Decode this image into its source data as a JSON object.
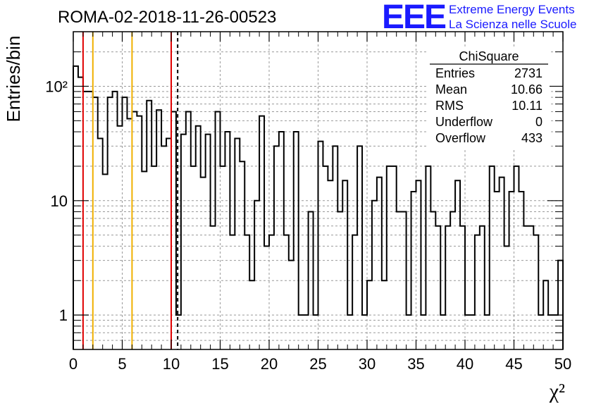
{
  "header": {
    "title": "ROMA-02-2018-11-26-00523",
    "logo": "EEE",
    "logo_line1": "Extreme Energy Events",
    "logo_line2": "La Scienza nelle Scuole"
  },
  "stats": {
    "name": "ChiSquare",
    "rows": [
      {
        "label": "Entries",
        "value": "2731"
      },
      {
        "label": "Mean",
        "value": "10.66"
      },
      {
        "label": "RMS",
        "value": "10.11"
      },
      {
        "label": "Underflow",
        "value": "0"
      },
      {
        "label": "Overflow",
        "value": "433"
      }
    ]
  },
  "chart_data": {
    "type": "bar",
    "histogram": "step",
    "xlabel": "χ²",
    "ylabel": "Entries/bin",
    "xlim": [
      0,
      50
    ],
    "ylim": [
      0.5,
      300
    ],
    "y_scale": "log",
    "grid": true,
    "bin_width": 0.5,
    "x_ticks": [
      "0",
      "5",
      "10",
      "15",
      "20",
      "25",
      "30",
      "35",
      "40",
      "45",
      "50"
    ],
    "y_ticks": [
      {
        "value": 1,
        "label": "1"
      },
      {
        "value": 10,
        "label": "10"
      },
      {
        "value": 100,
        "label": "10²"
      }
    ],
    "values": [
      150,
      120,
      90,
      90,
      80,
      35,
      17,
      80,
      90,
      45,
      80,
      52,
      60,
      55,
      18,
      75,
      20,
      62,
      30,
      35,
      60,
      1,
      38,
      60,
      20,
      45,
      16,
      38,
      6,
      60,
      20,
      40,
      5,
      35,
      22,
      5,
      2,
      10,
      55,
      4,
      5,
      30,
      40,
      5,
      3,
      40,
      1,
      1,
      8,
      1,
      33,
      20,
      15,
      30,
      8,
      15,
      1,
      5,
      30,
      1,
      2,
      10,
      16,
      2,
      20,
      20,
      8,
      8,
      1,
      12,
      15,
      1,
      20,
      8,
      6,
      1,
      6,
      8,
      15,
      6,
      1,
      1,
      5,
      6,
      1,
      20,
      12,
      16,
      4,
      12,
      20,
      12,
      6,
      6,
      5,
      1,
      2,
      1,
      1,
      3
    ],
    "vlines": [
      {
        "x": 1.0,
        "color": "#e00000",
        "style": "solid"
      },
      {
        "x": 2.0,
        "color": "#f0b000",
        "style": "solid"
      },
      {
        "x": 6.0,
        "color": "#f0b000",
        "style": "solid"
      },
      {
        "x": 10.0,
        "color": "#e00000",
        "style": "solid"
      },
      {
        "x": 10.66,
        "color": "#000000",
        "style": "dashed"
      }
    ]
  }
}
